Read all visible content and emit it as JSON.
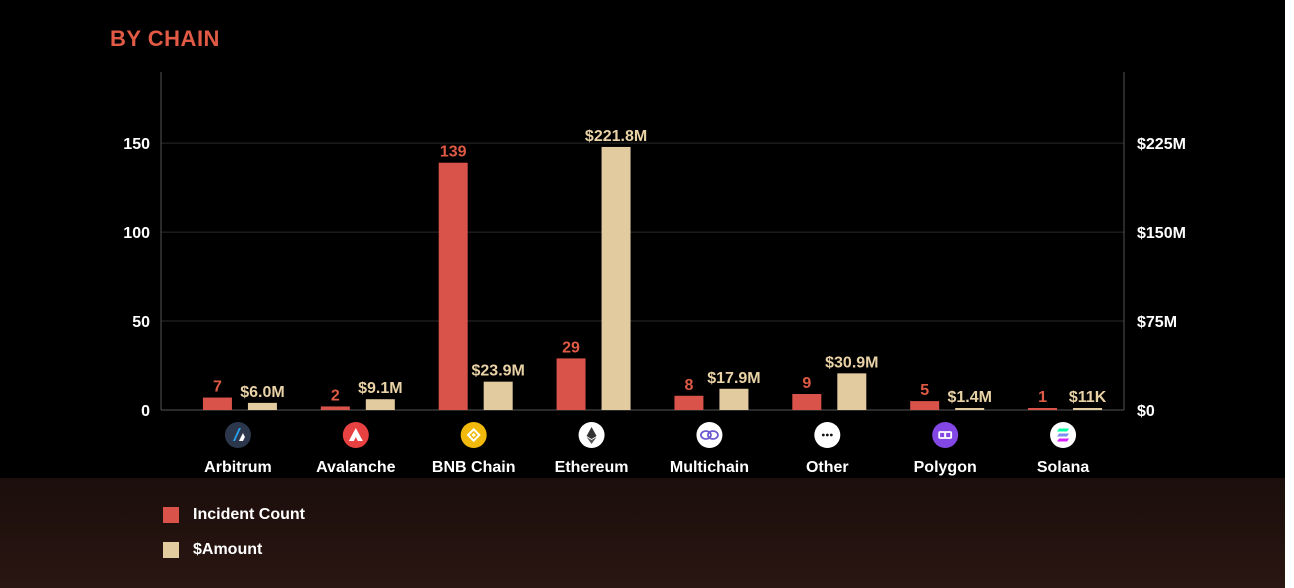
{
  "header": {
    "title": "BY CHAIN"
  },
  "colors": {
    "count": "#d9534a",
    "amount": "#e3cba0",
    "grid": "#2a2a2a",
    "axis": "#555555"
  },
  "chart_data": {
    "type": "bar",
    "title": "BY CHAIN",
    "categories": [
      "Arbitrum",
      "Avalanche",
      "BNB Chain",
      "Ethereum",
      "Multichain",
      "Other",
      "Polygon",
      "Solana"
    ],
    "category_icons": [
      "arbitrum-icon",
      "avalanche-icon",
      "bnb-chain-icon",
      "ethereum-icon",
      "multichain-icon",
      "other-icon",
      "polygon-icon",
      "solana-icon"
    ],
    "series": [
      {
        "name": "Incident Count",
        "axis": "left",
        "values": [
          7,
          2,
          139,
          29,
          8,
          9,
          5,
          1
        ],
        "labels": [
          "7",
          "2",
          "139",
          "29",
          "8",
          "9",
          "5",
          "1"
        ]
      },
      {
        "name": "$Amount",
        "axis": "right",
        "values": [
          6.0,
          9.1,
          23.9,
          221.8,
          17.9,
          30.9,
          1.4,
          0.011
        ],
        "labels": [
          "$6.0M",
          "$9.1M",
          "$23.9M",
          "$221.8M",
          "$17.9M",
          "$30.9M",
          "$1.4M",
          "$11K"
        ]
      }
    ],
    "y_left": {
      "ylim": [
        0,
        190
      ],
      "ticks": [
        0,
        50,
        100,
        150
      ],
      "tick_labels": [
        "0",
        "50",
        "100",
        "150"
      ]
    },
    "y_right": {
      "ylim": [
        0,
        285
      ],
      "unit": "$M",
      "ticks": [
        0,
        75,
        150,
        225
      ],
      "tick_labels": [
        "$0",
        "$75M",
        "$150M",
        "$225M"
      ]
    },
    "grid": true,
    "legend": {
      "position": "bottom-left",
      "entries": [
        "Incident Count",
        "$Amount"
      ]
    }
  }
}
